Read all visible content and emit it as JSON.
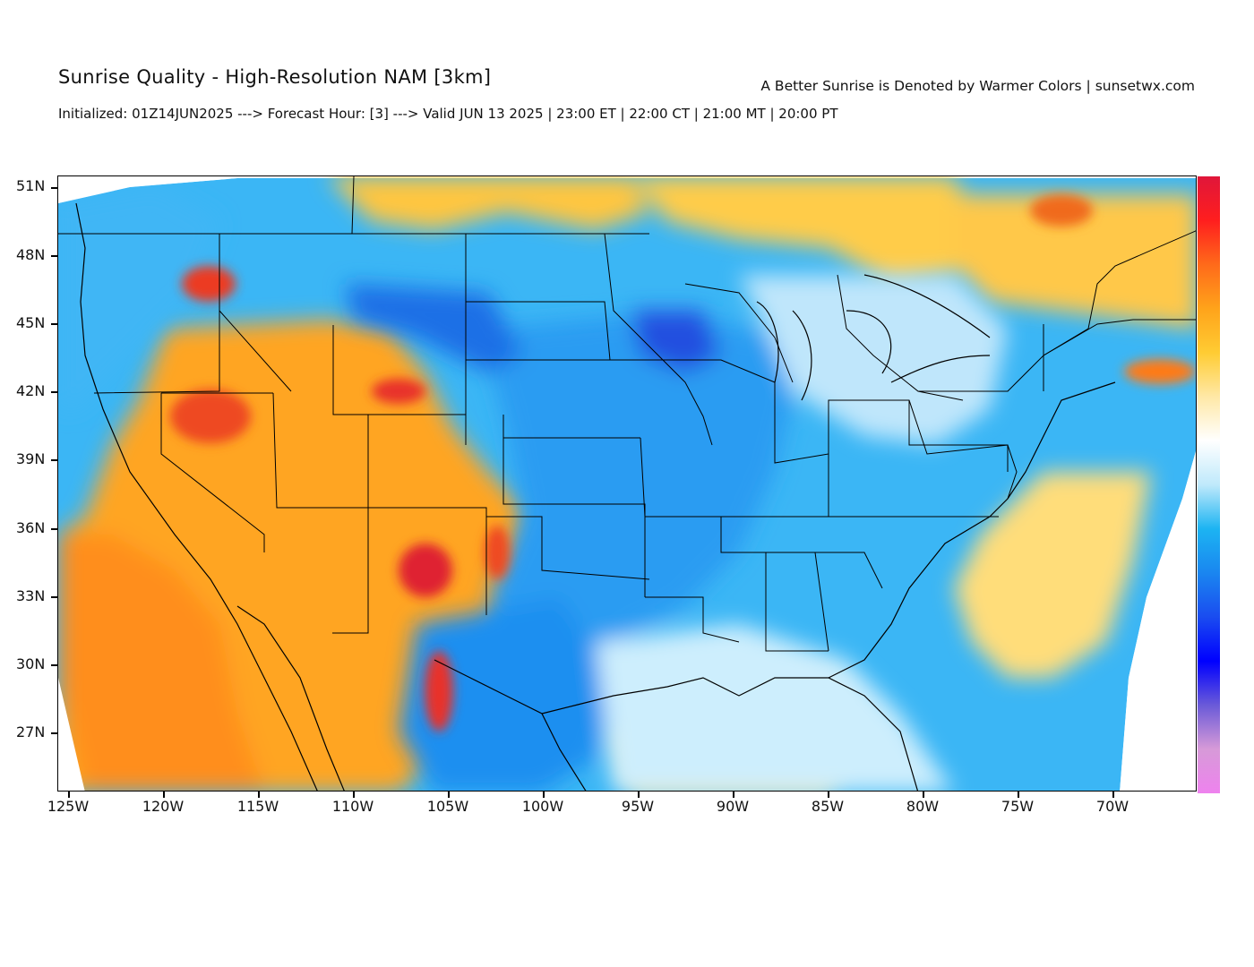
{
  "header": {
    "title": "Sunrise Quality - High-Resolution NAM [3km]",
    "subtitle": "Initialized: 01Z14JUN2025 ---> Forecast Hour: [3] ---> Valid JUN 13 2025 | 23:00 ET | 22:00 CT | 21:00 MT | 20:00 PT",
    "credit": "A Better Sunrise is Denoted by Warmer Colors | sunsetwx.com"
  },
  "map": {
    "latitude_labels": [
      "51N",
      "48N",
      "45N",
      "42N",
      "39N",
      "36N",
      "33N",
      "30N",
      "27N"
    ],
    "longitude_labels": [
      "125W",
      "120W",
      "115W",
      "110W",
      "105W",
      "100W",
      "95W",
      "90W",
      "85W",
      "80W",
      "75W",
      "70W"
    ],
    "colorbar": {
      "stops": [
        "#e0163a",
        "#ff1e1e",
        "#ff6a1a",
        "#ffa31a",
        "#ffcc33",
        "#ffe8a6",
        "#ffffff",
        "#bfe9fb",
        "#1cb4f2",
        "#1a86f0",
        "#1a4cf0",
        "#0000ff",
        "#6a5ad8",
        "#d79ad8",
        "#ee82ee"
      ]
    },
    "colors": {
      "warm_orange": "#ffa521",
      "deep_orange": "#ff8a17",
      "red": "#e8252a",
      "light_yellow": "#ffdc7a",
      "sky_blue": "#2fb0f5",
      "mid_blue": "#1e8ef0",
      "deep_blue": "#2045dd",
      "pale_blue": "#cdeefd"
    }
  }
}
